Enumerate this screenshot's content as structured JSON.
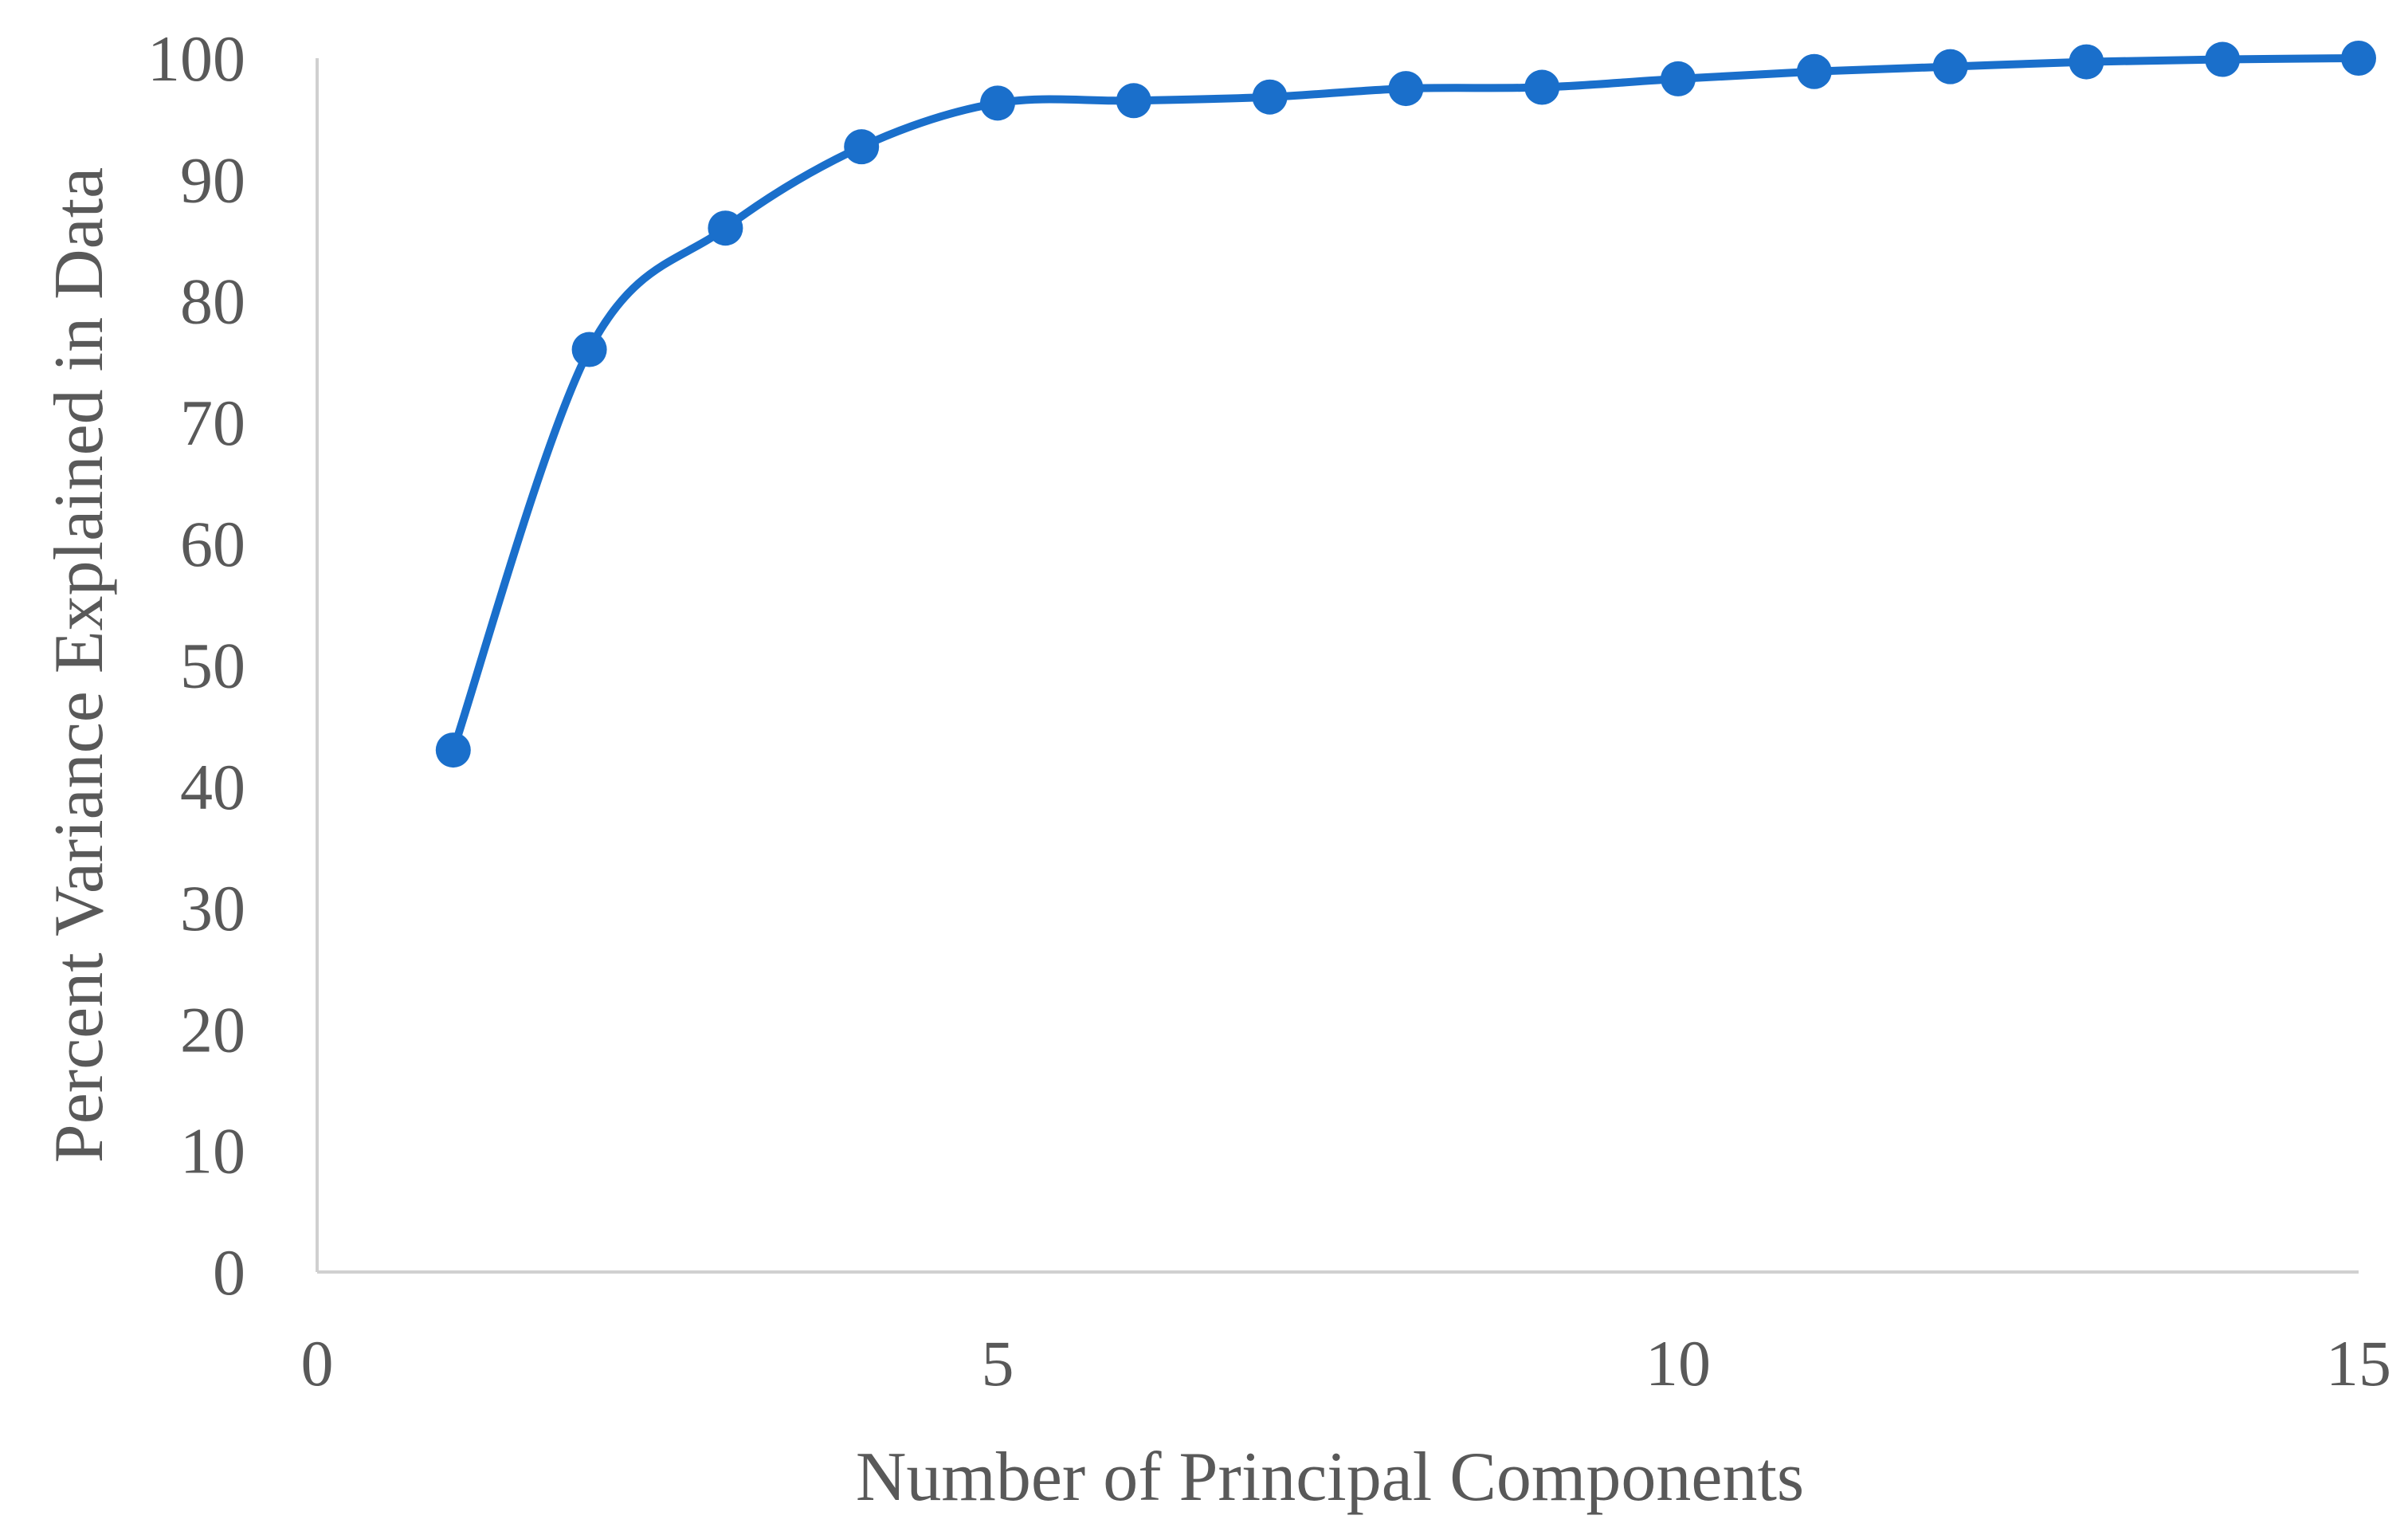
{
  "chart_data": {
    "type": "scatter",
    "title": "",
    "xlabel": "Number of Principal Components",
    "ylabel": "Percent Variance Explained in Data",
    "xlim": [
      0,
      15
    ],
    "ylim": [
      0,
      100
    ],
    "x_ticks": [
      0,
      5,
      10,
      15
    ],
    "y_ticks": [
      0,
      10,
      20,
      30,
      40,
      50,
      60,
      70,
      80,
      90,
      100
    ],
    "grid": false,
    "legend": "none",
    "smoothed_line": true,
    "series": [
      {
        "color": "#1a6fcb",
        "x": [
          1,
          2,
          3,
          4,
          5,
          6,
          7,
          8,
          9,
          10,
          11,
          12,
          13,
          14,
          15
        ],
        "y": [
          43,
          76,
          86,
          92.7,
          96.3,
          96.5,
          96.8,
          97.5,
          97.6,
          98.3,
          98.9,
          99.3,
          99.7,
          99.9,
          100
        ]
      }
    ]
  }
}
